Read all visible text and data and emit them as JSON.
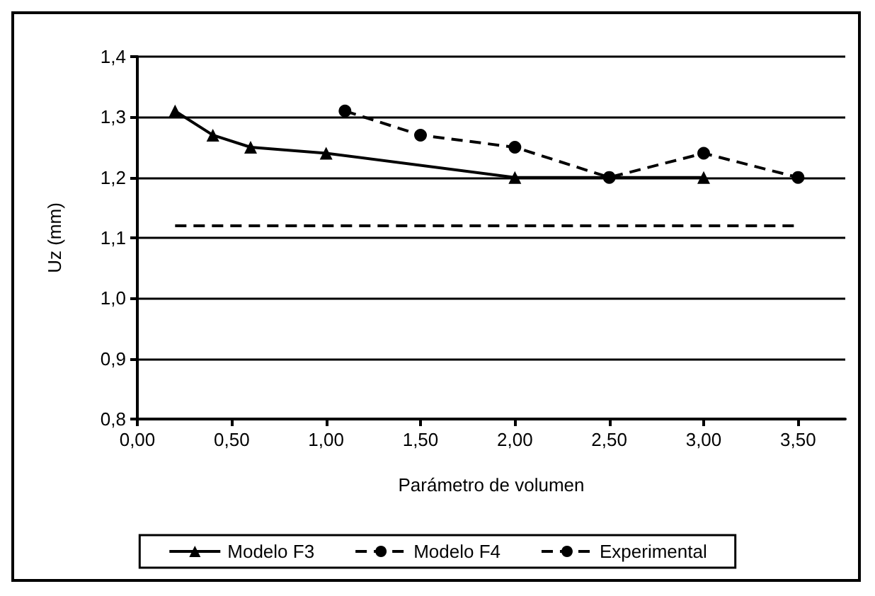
{
  "chart_data": {
    "type": "line",
    "xlabel": "Parámetro de volumen",
    "ylabel": "Uz (mm)",
    "xlim": [
      0,
      3.75
    ],
    "xticks": [
      {
        "value": 0,
        "label": "0,00"
      },
      {
        "value": 0.5,
        "label": "0,50"
      },
      {
        "value": 1,
        "label": "1,00"
      },
      {
        "value": 1.5,
        "label": "1,50"
      },
      {
        "value": 2,
        "label": "2,00"
      },
      {
        "value": 2.5,
        "label": "2,50"
      },
      {
        "value": 3,
        "label": "3,00"
      },
      {
        "value": 3.5,
        "label": "3,50"
      }
    ],
    "ylim": [
      0.8,
      1.4
    ],
    "yticks": [
      {
        "value": 0.8,
        "label": "0,8"
      },
      {
        "value": 0.9,
        "label": "0,9"
      },
      {
        "value": 1.0,
        "label": "1,0"
      },
      {
        "value": 1.1,
        "label": "1,1"
      },
      {
        "value": 1.2,
        "label": "1,2"
      },
      {
        "value": 1.3,
        "label": "1,3"
      },
      {
        "value": 1.4,
        "label": "1,4"
      }
    ],
    "grid": "y",
    "legend": "bottom",
    "series": [
      {
        "name": "Modelo F3",
        "color": "#000000",
        "marker": "triangle",
        "line_style": "solid",
        "x": [
          0.2,
          0.4,
          0.6,
          1.0,
          2.0,
          3.0
        ],
        "values": [
          1.31,
          1.27,
          1.25,
          1.24,
          1.2,
          1.2
        ]
      },
      {
        "name": "Modelo F4",
        "color": "#000000",
        "marker": "circle",
        "line_style": "dashed",
        "x": [
          1.1,
          1.5,
          2.0,
          2.5,
          3.0,
          3.5
        ],
        "values": [
          1.31,
          1.27,
          1.25,
          1.2,
          1.24,
          1.2
        ]
      },
      {
        "name": "Experimental",
        "color": "#000000",
        "marker": "none",
        "line_style": "dashed",
        "x": [
          0.2,
          3.5
        ],
        "values": [
          1.12,
          1.12
        ]
      }
    ]
  }
}
